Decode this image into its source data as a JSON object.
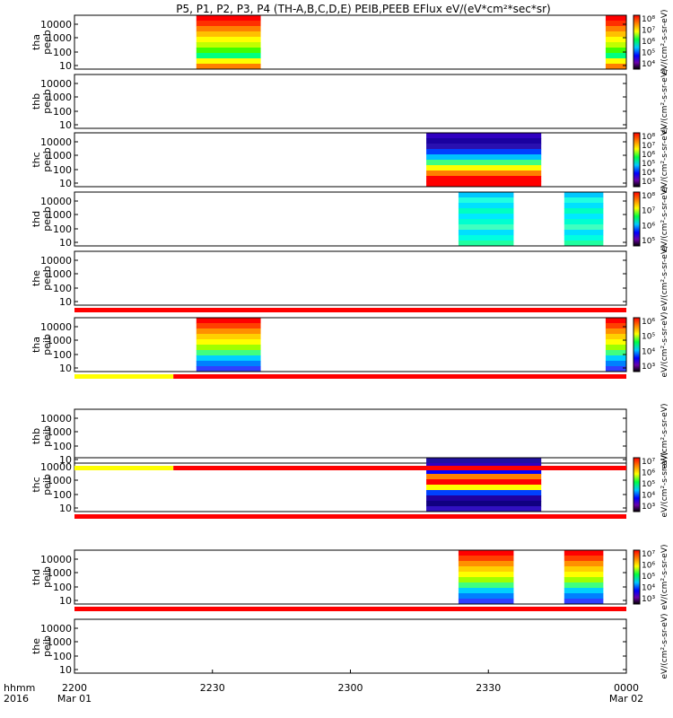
{
  "title": "P5, P1, P2, P3, P4 (TH-A,B,C,D,E) PEIB,PEEB EFlux eV/(eV*cm²*sec*sr)",
  "chart_data": {
    "type": "heatmap",
    "x_label_row": "hhmm",
    "x_label_year": "2016",
    "x_ticks": [
      {
        "t": 0,
        "label": "2200",
        "sub": "Mar 01"
      },
      {
        "t": 30,
        "label": "2230",
        "sub": ""
      },
      {
        "t": 60,
        "label": "2300",
        "sub": ""
      },
      {
        "t": 90,
        "label": "2330",
        "sub": ""
      },
      {
        "t": 120,
        "label": "0000",
        "sub": "Mar 02"
      }
    ],
    "xlim_minutes": [
      0,
      120
    ],
    "y_scale": "log",
    "y_ticks": [
      "10000",
      "1000",
      "100",
      "10"
    ],
    "panels": [
      {
        "probe": "tha",
        "product": "peeb",
        "intervals": [
          [
            26.5,
            40.5
          ],
          [
            115.5,
            120
          ]
        ],
        "profile": "electron",
        "cbar_ticks": [
          "10⁸",
          "10⁷",
          "10⁶",
          "10⁵",
          "10⁴"
        ],
        "cbar_label": "eV/(cm²-s-sr-eV)"
      },
      {
        "probe": "thb",
        "product": "peeb",
        "intervals": [],
        "profile": "none",
        "cbar_ticks": [],
        "cbar_label": "eV/(cm²-s-sr-eV)"
      },
      {
        "probe": "thc",
        "product": "peeb",
        "intervals": [
          [
            76.5,
            101.5
          ]
        ],
        "profile": "electron_hot",
        "cbar_ticks": [
          "10⁸",
          "10⁷",
          "10⁶",
          "10⁵",
          "10⁴",
          "10³"
        ],
        "cbar_label": "eV/(cm²-s-sr-eV)"
      },
      {
        "probe": "thd",
        "product": "peeb",
        "intervals": [
          [
            83.5,
            95.5
          ],
          [
            106.5,
            115
          ]
        ],
        "profile": "cool",
        "cbar_ticks": [
          "10⁸",
          "10⁷",
          "10⁶",
          "10⁵"
        ],
        "cbar_label": "eV/(cm²-s-sr-eV)"
      },
      {
        "probe": "the",
        "product": "peeb",
        "intervals": [],
        "profile": "none",
        "cbar_ticks": [],
        "cbar_label": "eV/(cm²-s-sr-eV)"
      },
      {
        "probe": "tha",
        "product": "peib",
        "intervals": [
          [
            26.5,
            40.5
          ],
          [
            115.5,
            120
          ]
        ],
        "profile": "ion",
        "cbar_ticks": [
          "10⁶",
          "10⁵",
          "10⁴",
          "10³"
        ],
        "cbar_label": "eV/(cm²-s-sr-eV)"
      },
      {
        "probe": "thb",
        "product": "peib",
        "intervals": [],
        "profile": "none",
        "cbar_ticks": [],
        "cbar_label": "eV/(cm²-s-sr-eV)"
      },
      {
        "probe": "thc",
        "product": "peib",
        "intervals": [
          [
            76.5,
            101.5
          ]
        ],
        "profile": "ion_band",
        "cbar_ticks": [
          "10⁷",
          "10⁶",
          "10⁵",
          "10⁴",
          "10³"
        ],
        "cbar_label": "eV/(cm²-s-sr-eV)"
      },
      {
        "probe": "thd",
        "product": "peib",
        "intervals": [
          [
            83.5,
            95.5
          ],
          [
            106.5,
            115
          ]
        ],
        "profile": "ion",
        "cbar_ticks": [
          "10⁷",
          "10⁶",
          "10⁵",
          "10⁴",
          "10³"
        ],
        "cbar_label": "eV/(cm²-s-sr-eV)"
      },
      {
        "probe": "the",
        "product": "peib",
        "intervals": [],
        "profile": "none",
        "cbar_ticks": [],
        "cbar_label": "eV/(cm²-s-sr-eV)"
      }
    ],
    "status_bars": [
      {
        "after_panel": 4,
        "segments": [
          {
            "from": 0,
            "to": 120,
            "color": "#ff0000"
          }
        ]
      },
      {
        "after_panel": 5,
        "segments": [
          {
            "from": 0,
            "to": 21.5,
            "color": "#ffff00"
          },
          {
            "from": 21.5,
            "to": 120,
            "color": "#ff0000"
          }
        ]
      },
      {
        "after_panel": 6,
        "segments": [
          {
            "from": 0,
            "to": 21.5,
            "color": "#ffff00"
          },
          {
            "from": 21.5,
            "to": 120,
            "color": "#ff0000"
          }
        ]
      },
      {
        "after_panel": 7,
        "segments": [
          {
            "from": 0,
            "to": 120,
            "color": "#ff0000"
          }
        ]
      },
      {
        "after_panel": 8,
        "segments": [
          {
            "from": 0,
            "to": 120,
            "color": "#ff0000"
          }
        ]
      }
    ]
  }
}
